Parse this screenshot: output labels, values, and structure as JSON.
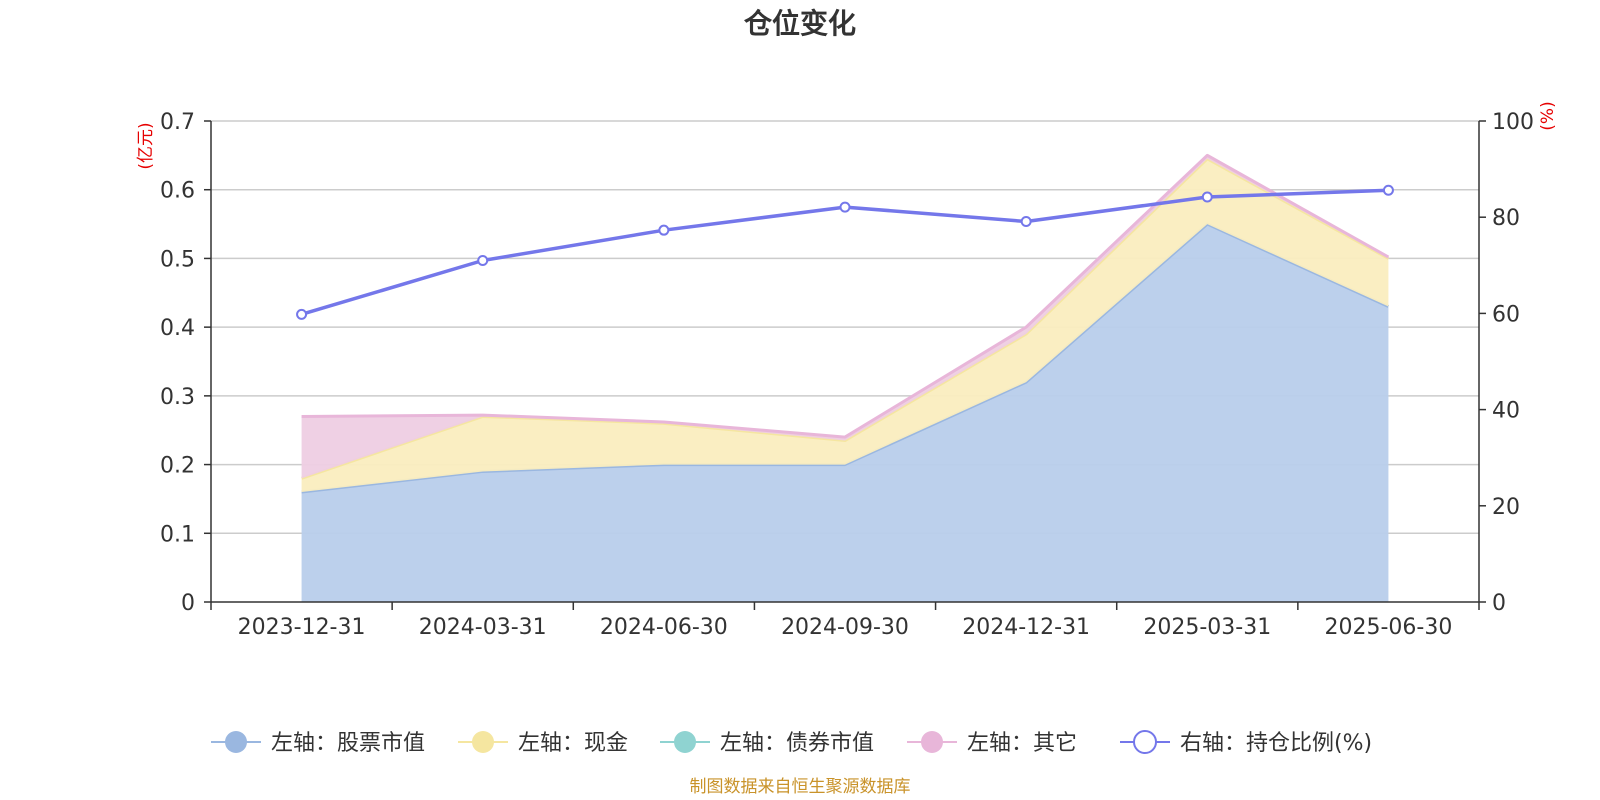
{
  "chart_data": {
    "type": "area",
    "title": "仓位变化",
    "categories": [
      "2023-12-31",
      "2024-03-31",
      "2024-06-30",
      "2024-09-30",
      "2024-12-31",
      "2025-03-31",
      "2025-06-30"
    ],
    "left_axis": {
      "unit": "(亿元)",
      "ylim": [
        0,
        0.7
      ],
      "ticks": [
        "0",
        "0.1",
        "0.2",
        "0.3",
        "0.4",
        "0.5",
        "0.6",
        "0.7"
      ]
    },
    "right_axis": {
      "unit": "(%)",
      "ylim": [
        0,
        100
      ],
      "ticks": [
        "0",
        "20",
        "40",
        "60",
        "80",
        "100"
      ]
    },
    "series": [
      {
        "name": "左轴：股票市值",
        "axis": "left",
        "stack": true,
        "color": "#9ab7e0",
        "fill": "#b8cdeb",
        "values": [
          0.16,
          0.19,
          0.2,
          0.2,
          0.32,
          0.55,
          0.43
        ]
      },
      {
        "name": "左轴：现金",
        "axis": "left",
        "stack": true,
        "color": "#f5e6a0",
        "fill": "#faedbf",
        "values": [
          0.02,
          0.08,
          0.06,
          0.035,
          0.07,
          0.095,
          0.07
        ]
      },
      {
        "name": "左轴：债券市值",
        "axis": "left",
        "stack": true,
        "color": "#8fd3d1",
        "fill": "#b4e2e1",
        "values": [
          0,
          0,
          0,
          0,
          0,
          0,
          0
        ]
      },
      {
        "name": "左轴：其它",
        "axis": "left",
        "stack": true,
        "color": "#e8b6d9",
        "fill": "#eecde3",
        "values": [
          0.09,
          0.002,
          0.002,
          0.005,
          0.01,
          0.005,
          0.002
        ]
      },
      {
        "name": "右轴：持仓比例(%)",
        "axis": "right",
        "type": "line",
        "color": "#7477ea",
        "values": [
          59.8,
          71.0,
          77.3,
          82.1,
          79.1,
          84.2,
          85.6
        ]
      }
    ],
    "grid": true,
    "legend_position": "bottom"
  },
  "source": "制图数据来自恒生聚源数据库"
}
